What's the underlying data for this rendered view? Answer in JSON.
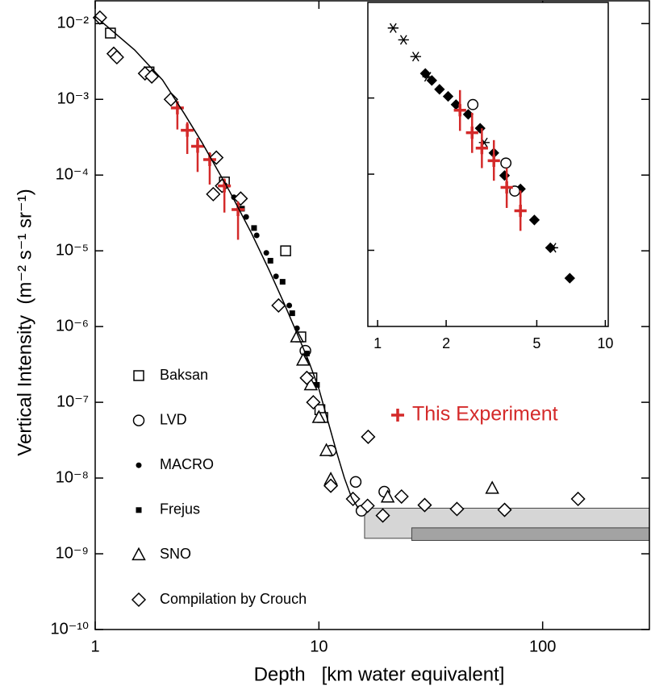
{
  "chart_data": [
    {
      "type": "scatter",
      "xlabel": "Depth   [km water equivalent]",
      "ylabel": "Vertical Intensity  (m⁻² s⁻¹ sr⁻¹)",
      "log_x": true,
      "log_y": true,
      "xlim": [
        1,
        300
      ],
      "ylim": [
        1e-10,
        0.02
      ],
      "xticks": [
        1,
        10,
        100
      ],
      "yticks": [
        {
          "value": 1e-10,
          "label": "10⁻¹⁰"
        },
        {
          "value": 1e-09,
          "label": "10⁻⁹"
        },
        {
          "value": 1e-08,
          "label": "10⁻⁸"
        },
        {
          "value": 1e-07,
          "label": "10⁻⁷"
        },
        {
          "value": 1e-06,
          "label": "10⁻⁶"
        },
        {
          "value": 1e-05,
          "label": "10⁻⁵"
        },
        {
          "value": 0.0001,
          "label": "10⁻⁴"
        },
        {
          "value": 0.001,
          "label": "10⁻³"
        },
        {
          "value": 0.01,
          "label": "10⁻²"
        }
      ],
      "legend": "lower left",
      "bands": [
        {
          "x": [
            16,
            300
          ],
          "values": [
            1.6e-09,
            4e-09
          ],
          "color": "#d6d6d6"
        },
        {
          "x": [
            26,
            300
          ],
          "values": [
            1.5e-09,
            2.2e-09
          ],
          "color": "#a3a3a3"
        }
      ],
      "series": [
        {
          "name": "Baksan",
          "marker": "square-open",
          "color": "#000000",
          "x": [
            1.17,
            1.74,
            3.78,
            7.1,
            8.3,
            9.3,
            10.1,
            10.4
          ],
          "values": [
            0.0075,
            0.0023,
            8.1e-05,
            1e-05,
            7.3e-07,
            2.1e-07,
            8e-08,
            6.3e-08
          ]
        },
        {
          "name": "LVD",
          "marker": "circle-open",
          "color": "#000000",
          "x": [
            8.7,
            11.3,
            14.6,
            15.5,
            19.6
          ],
          "values": [
            4.8e-07,
            2.3e-08,
            8.9e-09,
            3.7e-09,
            6.6e-09
          ]
        },
        {
          "name": "MACRO",
          "marker": "circle-filled",
          "color": "#000000",
          "x": [
            4.17,
            4.73,
            5.27,
            5.82,
            6.43,
            7.37,
            7.98,
            8.7,
            9.6
          ],
          "values": [
            5.1e-05,
            2.8e-05,
            1.6e-05,
            9.4e-06,
            4.6e-06,
            1.9e-06,
            9.5e-07,
            3.6e-07,
            1e-07
          ]
        },
        {
          "name": "Frejus",
          "marker": "square-filled",
          "color": "#000000",
          "x": [
            4.53,
            5.13,
            6.07,
            6.88,
            7.6,
            8.83,
            9.8
          ],
          "values": [
            3.6e-05,
            2e-05,
            7.4e-06,
            3.9e-06,
            1.5e-06,
            4.4e-07,
            1.7e-07
          ]
        },
        {
          "name": "SNO",
          "marker": "triangle-open",
          "color": "#000000",
          "x": [
            7.98,
            8.5,
            9.2,
            10.0,
            10.8,
            11.3,
            20.3,
            59.5
          ],
          "values": [
            7.3e-07,
            3.6e-07,
            1.7e-07,
            6.3e-08,
            2.3e-08,
            9.6e-09,
            5.6e-09,
            7.3e-09
          ]
        },
        {
          "name": "Compilation by Crouch",
          "marker": "diamond-open",
          "color": "#000000",
          "x": [
            1.05,
            1.21,
            1.25,
            1.67,
            1.79,
            2.18,
            3.48,
            3.37,
            3.69,
            4.47,
            6.6,
            8.83,
            9.44,
            16.6,
            11.3,
            14.2,
            16.5,
            19.3,
            23.4,
            29.7,
            41.4,
            67.6,
            144
          ],
          "values": [
            0.012,
            0.004,
            0.0036,
            0.0022,
            0.002,
            0.001,
            0.00017,
            5.6e-05,
            7.2e-05,
            4.9e-05,
            1.9e-06,
            2.1e-07,
            1e-07,
            3.5e-08,
            7.9e-09,
            5.3e-09,
            4.3e-09,
            3.2e-09,
            5.7e-09,
            4.4e-09,
            3.9e-09,
            3.8e-09,
            5.3e-09
          ]
        },
        {
          "name": "This Experiment",
          "marker": "plus",
          "color": "#d42a2a",
          "x": [
            2.33,
            2.58,
            2.87,
            3.25,
            3.78,
            4.35
          ],
          "values": [
            0.00077,
            0.00039,
            0.00024,
            0.00016,
            7.2e-05,
            3.5e-05
          ],
          "ylow": [
            0.0004,
            0.00019,
            0.00011,
            7.5e-05,
            3.2e-05,
            1.4e-05
          ],
          "yhigh": [
            0.00095,
            0.0005,
            0.00031,
            0.0002,
            9e-05,
            4.5e-05
          ]
        },
        {
          "marker": "line",
          "color": "#000000",
          "x": [
            1,
            1.5,
            2,
            2.5,
            3,
            4,
            5,
            6,
            7,
            8,
            9,
            10,
            11,
            12,
            13,
            14,
            15
          ],
          "values": [
            0.0125,
            0.0045,
            0.0018,
            0.00065,
            0.00027,
            6e-05,
            1.7e-05,
            5.5e-06,
            2e-06,
            8e-07,
            3.5e-07,
            1.5e-07,
            5.5e-08,
            2.2e-08,
            1e-08,
            5.5e-09,
            4e-09
          ]
        }
      ]
    },
    {
      "type": "scatter",
      "log_x": true,
      "log_y": true,
      "xlim": [
        0.906,
        10.3
      ],
      "ylim": [
        0.0001,
        1.8
      ],
      "xticks": [
        1,
        2,
        5,
        10
      ],
      "yticks": [
        0.001,
        0.01,
        0.1
      ],
      "series": [
        {
          "marker": "asterisk",
          "color": "#000000",
          "x": [
            1.17,
            1.3,
            1.47,
            1.66,
            2.94,
            5.88
          ],
          "values": [
            0.83,
            0.58,
            0.35,
            0.19,
            0.026,
            0.00108
          ]
        },
        {
          "marker": "diamond-filled",
          "color": "#000000",
          "x": [
            1.62,
            1.73,
            1.87,
            2.04,
            2.21,
            2.5,
            2.82,
            3.24,
            3.61,
            4.24,
            4.88,
            5.74,
            6.98
          ],
          "values": [
            0.21,
            0.17,
            0.13,
            0.105,
            0.082,
            0.061,
            0.04,
            0.019,
            0.0096,
            0.0064,
            0.0025,
            0.00108,
            0.00043
          ]
        },
        {
          "marker": "circle-open",
          "color": "#000000",
          "x": [
            2.62,
            3.66,
            4.0
          ],
          "values": [
            0.082,
            0.014,
            0.006
          ]
        },
        {
          "marker": "plus",
          "color": "#d42a2a",
          "x": [
            2.3,
            2.6,
            2.87,
            3.24,
            3.69,
            4.24
          ],
          "values": [
            0.069,
            0.035,
            0.022,
            0.015,
            0.0067,
            0.0033
          ],
          "ylow": [
            0.037,
            0.019,
            0.012,
            0.0082,
            0.0036,
            0.0018
          ],
          "yhigh": [
            0.127,
            0.064,
            0.04,
            0.028,
            0.012,
            0.0061
          ]
        }
      ]
    }
  ]
}
